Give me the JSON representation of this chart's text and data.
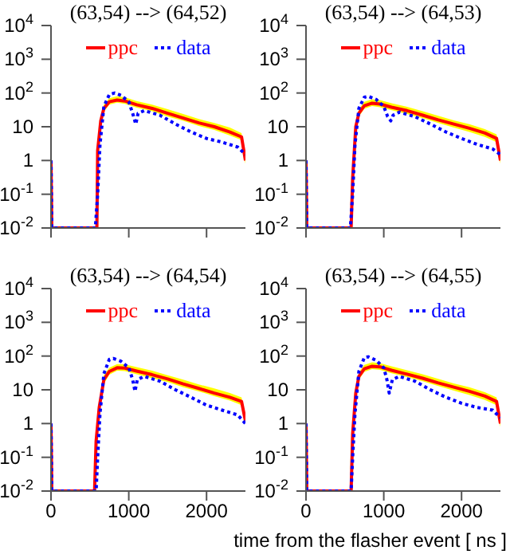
{
  "chart_data": [
    {
      "type": "line",
      "title": "(63,54) --> (64,52)",
      "log": "y",
      "legend": "top",
      "grid": false,
      "xlim": [
        0,
        2500
      ],
      "xticks": [
        0,
        1000,
        2000
      ],
      "ylim": [
        0.01,
        10000
      ],
      "yticks": [
        {
          "value": 0.01,
          "label": "10$^{-2}$"
        },
        {
          "value": 0.1,
          "label": "10$^{-1}$"
        },
        {
          "value": 1,
          "label": "1"
        },
        {
          "value": 10,
          "label": "10"
        },
        {
          "value": 100,
          "label": "10$^{2}$"
        },
        {
          "value": 1000,
          "label": "10$^{3}$"
        },
        {
          "value": 10000,
          "label": "10$^{4}$"
        }
      ],
      "tick_labels": "y",
      "series": [
        {
          "name": "ppc",
          "color": "#ff0000",
          "line_style": "solid",
          "x": [
            0,
            10,
            590,
            600,
            640,
            680,
            750,
            850,
            950,
            1100,
            1300,
            1500,
            1700,
            1900,
            2100,
            2300,
            2450,
            2500
          ],
          "values": [
            1,
            0.01,
            0.01,
            2,
            15,
            35,
            55,
            62,
            58,
            45,
            35,
            25,
            18,
            13,
            10,
            7,
            5,
            1
          ],
          "lower": [
            1,
            0.01,
            0.01,
            1.5,
            11,
            28,
            45,
            52,
            48,
            37,
            29,
            20,
            15,
            10.5,
            8,
            5.5,
            4,
            0.8
          ],
          "upper": [
            1,
            0.01,
            0.01,
            2.5,
            19,
            45,
            70,
            80,
            75,
            58,
            45,
            33,
            24,
            17,
            13,
            9.5,
            6.5,
            1.3
          ]
        },
        {
          "name": "data",
          "color": "#0000ff",
          "line_style": "dotted",
          "x": [
            0,
            10,
            570,
            600,
            630,
            680,
            750,
            820,
            900,
            1000,
            1050,
            1090,
            1120,
            1200,
            1400,
            1600,
            1800,
            2000,
            2200,
            2400,
            2500
          ],
          "values": [
            1,
            0.01,
            0.01,
            0.1,
            3,
            40,
            90,
            100,
            85,
            55,
            25,
            12,
            25,
            30,
            22,
            12,
            7,
            4.5,
            3.5,
            2.5,
            1.5
          ]
        }
      ]
    },
    {
      "type": "line",
      "title": "(63,54) --> (64,53)",
      "log": "y",
      "legend": "top",
      "grid": false,
      "xlim": [
        0,
        2500
      ],
      "xticks": [
        0,
        1000,
        2000
      ],
      "ylim": [
        0.01,
        10000
      ],
      "yticks": [
        {
          "value": 0.01,
          "label": "10$^{-2}$"
        },
        {
          "value": 0.1,
          "label": "10$^{-1}$"
        },
        {
          "value": 1,
          "label": "1"
        },
        {
          "value": 10,
          "label": "10"
        },
        {
          "value": 100,
          "label": "10$^{2}$"
        },
        {
          "value": 1000,
          "label": "10$^{3}$"
        },
        {
          "value": 10000,
          "label": "10$^{4}$"
        }
      ],
      "tick_labels": "y",
      "series": [
        {
          "name": "ppc",
          "color": "#ff0000",
          "line_style": "solid",
          "x": [
            0,
            10,
            580,
            600,
            640,
            680,
            750,
            850,
            950,
            1100,
            1300,
            1500,
            1700,
            1900,
            2100,
            2300,
            2450,
            2500
          ],
          "values": [
            1,
            0.01,
            0.01,
            0.3,
            10,
            25,
            42,
            50,
            47,
            38,
            30,
            22,
            16,
            12,
            9,
            6.5,
            4.5,
            1
          ],
          "lower": [
            1,
            0.01,
            0.01,
            0.2,
            7,
            20,
            34,
            41,
            38,
            31,
            24,
            18,
            13,
            9.5,
            7,
            5,
            3.5,
            0.8
          ],
          "upper": [
            1,
            0.01,
            0.01,
            0.4,
            13,
            33,
            55,
            65,
            62,
            50,
            39,
            29,
            21,
            15.5,
            12,
            8.5,
            6,
            1.3
          ]
        },
        {
          "name": "data",
          "color": "#0000ff",
          "line_style": "dotted",
          "x": [
            0,
            10,
            570,
            600,
            630,
            680,
            750,
            800,
            900,
            1000,
            1050,
            1090,
            1120,
            1200,
            1400,
            1600,
            1800,
            2000,
            2200,
            2400,
            2500
          ],
          "values": [
            1,
            0.01,
            0.01,
            0.1,
            3,
            35,
            75,
            80,
            65,
            40,
            20,
            15,
            22,
            27,
            20,
            12,
            7,
            4.5,
            3,
            2.2,
            1.5
          ]
        }
      ]
    },
    {
      "type": "line",
      "title": "(63,54) --> (64,54)",
      "log": "y",
      "legend": "top",
      "grid": false,
      "xlim": [
        0,
        2500
      ],
      "xticks": [
        0,
        1000,
        2000
      ],
      "ylim": [
        0.01,
        10000
      ],
      "yticks": [
        {
          "value": 0.01,
          "label": "10$^{-2}$"
        },
        {
          "value": 0.1,
          "label": "10$^{-1}$"
        },
        {
          "value": 1,
          "label": "1"
        },
        {
          "value": 10,
          "label": "10"
        },
        {
          "value": 100,
          "label": "10$^{2}$"
        },
        {
          "value": 1000,
          "label": "10$^{3}$"
        },
        {
          "value": 10000,
          "label": "10$^{4}$"
        }
      ],
      "series": [
        {
          "name": "ppc",
          "color": "#ff0000",
          "line_style": "solid",
          "x": [
            0,
            10,
            560,
            580,
            620,
            680,
            750,
            850,
            950,
            1100,
            1300,
            1500,
            1700,
            1900,
            2100,
            2300,
            2450,
            2500
          ],
          "values": [
            1,
            0.01,
            0.01,
            0.3,
            3,
            20,
            35,
            45,
            44,
            36,
            28,
            21,
            15,
            11,
            8,
            6,
            4.5,
            1.2
          ],
          "lower": [
            1,
            0.01,
            0.01,
            0.2,
            2.2,
            15,
            28,
            37,
            36,
            29,
            22,
            17,
            12,
            9,
            6.5,
            4.8,
            3.5,
            1
          ],
          "upper": [
            1,
            0.01,
            0.01,
            0.4,
            4,
            27,
            45,
            58,
            57,
            47,
            37,
            27,
            20,
            14.5,
            11,
            8,
            6,
            1.5
          ]
        },
        {
          "name": "data",
          "color": "#0000ff",
          "line_style": "dotted",
          "x": [
            0,
            10,
            580,
            600,
            630,
            680,
            750,
            800,
            900,
            1000,
            1050,
            1080,
            1110,
            1200,
            1400,
            1600,
            1800,
            2000,
            2200,
            2400,
            2500
          ],
          "values": [
            1,
            0.01,
            0.01,
            0.1,
            2,
            30,
            80,
            85,
            70,
            45,
            20,
            9,
            20,
            25,
            18,
            10,
            6,
            3.5,
            2.5,
            1.8,
            1
          ]
        }
      ]
    },
    {
      "type": "line",
      "title": "(63,54) --> (64,55)",
      "xlabel": "time from the flasher event [ ns ]",
      "log": "y",
      "legend": "top",
      "grid": false,
      "xlim": [
        0,
        2500
      ],
      "xticks": [
        0,
        1000,
        2000
      ],
      "ylim": [
        0.01,
        10000
      ],
      "yticks": [
        {
          "value": 0.01,
          "label": "10$^{-2}$"
        },
        {
          "value": 0.1,
          "label": "10$^{-1}$"
        },
        {
          "value": 1,
          "label": "1"
        },
        {
          "value": 10,
          "label": "10"
        },
        {
          "value": 100,
          "label": "10$^{2}$"
        },
        {
          "value": 1000,
          "label": "10$^{3}$"
        },
        {
          "value": 10000,
          "label": "10$^{4}$"
        }
      ],
      "series": [
        {
          "name": "ppc",
          "color": "#ff0000",
          "line_style": "solid",
          "x": [
            0,
            10,
            580,
            600,
            640,
            680,
            750,
            850,
            950,
            1100,
            1300,
            1500,
            1700,
            1900,
            2100,
            2300,
            2450,
            2500
          ],
          "values": [
            1,
            0.01,
            0.01,
            0.5,
            8,
            25,
            42,
            50,
            48,
            38,
            29,
            22,
            16,
            12,
            9,
            6.5,
            4.5,
            1
          ],
          "lower": [
            1,
            0.01,
            0.01,
            0.35,
            6,
            20,
            34,
            41,
            39,
            31,
            24,
            18,
            13,
            9.5,
            7,
            5,
            3.5,
            0.8
          ],
          "upper": [
            1,
            0.01,
            0.01,
            0.7,
            11,
            33,
            55,
            65,
            62,
            50,
            38,
            29,
            21,
            15.5,
            12,
            8.5,
            6,
            1.3
          ]
        },
        {
          "name": "data",
          "color": "#0000ff",
          "line_style": "dotted",
          "x": [
            0,
            10,
            580,
            600,
            630,
            680,
            750,
            800,
            900,
            1000,
            1040,
            1070,
            1110,
            1200,
            1400,
            1600,
            1800,
            2000,
            2200,
            2400,
            2500
          ],
          "values": [
            1,
            0.01,
            0.01,
            0.1,
            2,
            35,
            90,
            95,
            75,
            45,
            20,
            8,
            20,
            25,
            18,
            10,
            6,
            4,
            3,
            2.5,
            1.5
          ]
        }
      ]
    }
  ]
}
